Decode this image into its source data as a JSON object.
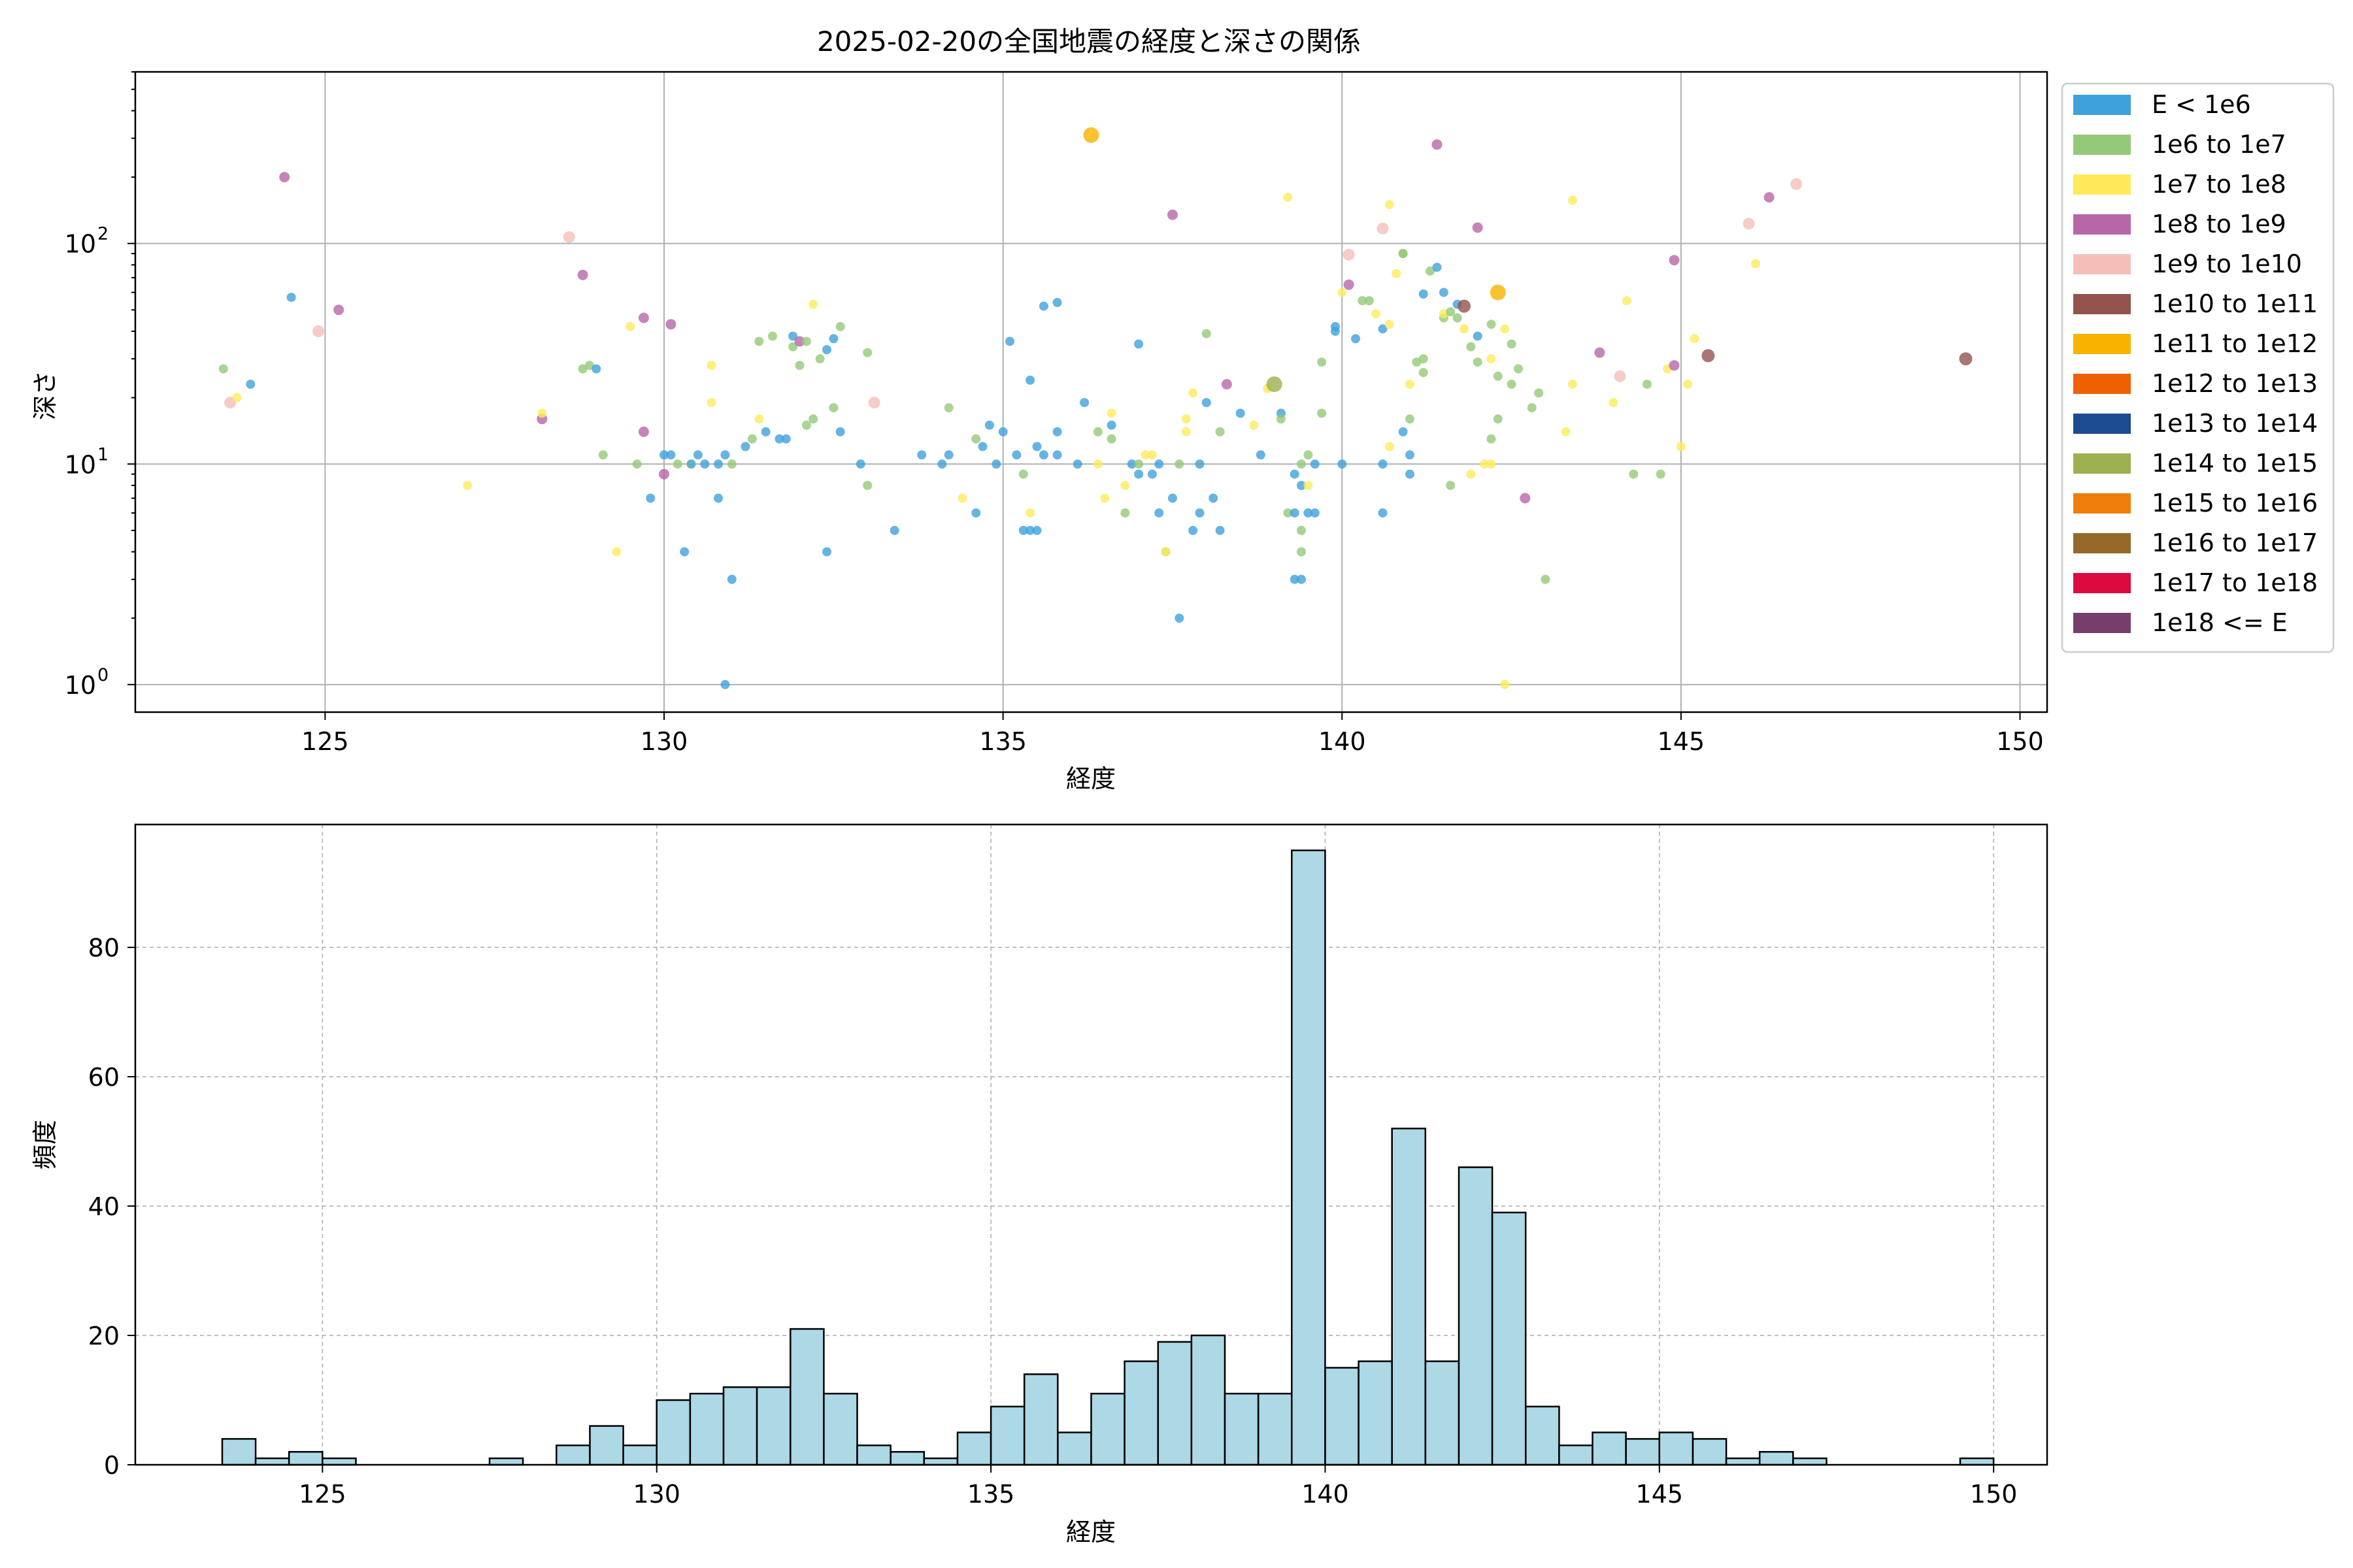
{
  "chart_data": [
    {
      "type": "scatter",
      "title": "2025-02-20の全国地震の経度と深さの関係",
      "xlabel": "経度",
      "ylabel": "深さ",
      "xlim": [
        122.2,
        150.4
      ],
      "ylim": [
        600,
        0.75
      ],
      "y_scale": "log",
      "y_inverted": true,
      "grid": true,
      "xticks": [
        125,
        130,
        135,
        140,
        145,
        150
      ],
      "xtick_labels": [
        "125",
        "130",
        "135",
        "140",
        "145",
        "150"
      ],
      "ytick_labels": [
        {
          "value": 1,
          "base": "10",
          "exp": "0"
        },
        {
          "value": 10,
          "base": "10",
          "exp": "1"
        },
        {
          "value": 100,
          "base": "10",
          "exp": "2"
        }
      ],
      "legend_position": "outside-right",
      "legend": [
        {
          "label": "E < 1e6",
          "color": "#3ea1dc"
        },
        {
          "label": "1e6 to 1e7",
          "color": "#93c977"
        },
        {
          "label": "1e7 to 1e8",
          "color": "#ffeb5c"
        },
        {
          "label": "1e8 to 1e9",
          "color": "#b866a8"
        },
        {
          "label": "1e9 to 1e10",
          "color": "#f5bfb8"
        },
        {
          "label": "1e10 to 1e11",
          "color": "#94534d"
        },
        {
          "label": "1e11 to 1e12",
          "color": "#f8b300"
        },
        {
          "label": "1e12 to 1e13",
          "color": "#ed6103"
        },
        {
          "label": "1e13 to 1e14",
          "color": "#1d4b8f"
        },
        {
          "label": "1e14 to 1e15",
          "color": "#9cb04f"
        },
        {
          "label": "1e15 to 1e16",
          "color": "#ef7e0b"
        },
        {
          "label": "1e16 to 1e17",
          "color": "#96692a"
        },
        {
          "label": "1e17 to 1e18",
          "color": "#dc0a3f"
        },
        {
          "label": "1e18 <= E",
          "color": "#773e6c"
        }
      ],
      "points": [
        [
          123.5,
          27,
          1
        ],
        [
          123.6,
          19,
          4
        ],
        [
          123.7,
          20,
          2
        ],
        [
          123.9,
          23,
          0
        ],
        [
          124.4,
          200,
          3
        ],
        [
          124.5,
          57,
          0
        ],
        [
          124.9,
          40,
          4
        ],
        [
          125.2,
          50,
          3
        ],
        [
          127.1,
          8,
          2
        ],
        [
          128.2,
          16,
          3
        ],
        [
          128.2,
          17,
          2
        ],
        [
          128.6,
          107,
          4
        ],
        [
          128.8,
          72,
          3
        ],
        [
          128.8,
          27,
          1
        ],
        [
          128.9,
          28,
          1
        ],
        [
          129.0,
          27,
          0
        ],
        [
          129.1,
          11,
          1
        ],
        [
          129.3,
          4,
          2
        ],
        [
          129.5,
          42,
          2
        ],
        [
          129.6,
          10,
          1
        ],
        [
          129.7,
          46,
          3
        ],
        [
          129.7,
          14,
          3
        ],
        [
          129.8,
          7,
          0
        ],
        [
          130.0,
          9,
          3
        ],
        [
          130.0,
          11,
          0
        ],
        [
          130.1,
          11,
          0
        ],
        [
          130.1,
          43,
          3
        ],
        [
          130.2,
          10,
          1
        ],
        [
          130.3,
          4,
          0
        ],
        [
          130.4,
          10,
          2
        ],
        [
          130.4,
          10,
          0
        ],
        [
          130.5,
          11,
          0
        ],
        [
          130.6,
          10,
          0
        ],
        [
          130.7,
          19,
          2
        ],
        [
          130.7,
          28,
          2
        ],
        [
          130.8,
          10,
          0
        ],
        [
          130.8,
          7,
          0
        ],
        [
          130.9,
          11,
          0
        ],
        [
          130.9,
          1.0,
          0
        ],
        [
          131.0,
          10,
          1
        ],
        [
          131.0,
          3,
          0
        ],
        [
          131.2,
          12,
          0
        ],
        [
          131.3,
          13,
          1
        ],
        [
          131.4,
          36,
          1
        ],
        [
          131.4,
          16,
          2
        ],
        [
          131.5,
          14,
          0
        ],
        [
          131.6,
          38,
          1
        ],
        [
          131.7,
          13,
          0
        ],
        [
          131.8,
          13,
          0
        ],
        [
          131.9,
          38,
          0
        ],
        [
          131.9,
          34,
          1
        ],
        [
          132.0,
          28,
          1
        ],
        [
          132.0,
          36,
          3
        ],
        [
          132.1,
          36,
          1
        ],
        [
          132.1,
          15,
          1
        ],
        [
          132.2,
          53,
          2
        ],
        [
          132.2,
          16,
          1
        ],
        [
          132.3,
          30,
          1
        ],
        [
          132.4,
          33,
          0
        ],
        [
          132.4,
          4,
          0
        ],
        [
          132.5,
          37,
          0
        ],
        [
          132.5,
          18,
          1
        ],
        [
          132.6,
          42,
          1
        ],
        [
          132.6,
          14,
          0
        ],
        [
          132.9,
          10,
          0
        ],
        [
          133.0,
          32,
          1
        ],
        [
          133.0,
          8,
          1
        ],
        [
          133.1,
          19,
          4
        ],
        [
          133.4,
          5,
          0
        ],
        [
          133.8,
          11,
          0
        ],
        [
          134.1,
          10,
          0
        ],
        [
          134.2,
          18,
          1
        ],
        [
          134.2,
          11,
          0
        ],
        [
          134.4,
          7,
          2
        ],
        [
          134.6,
          6,
          0
        ],
        [
          134.6,
          13,
          1
        ],
        [
          134.7,
          12,
          0
        ],
        [
          134.8,
          15,
          0
        ],
        [
          134.9,
          10,
          0
        ],
        [
          135.0,
          14,
          0
        ],
        [
          135.1,
          36,
          0
        ],
        [
          135.2,
          11,
          0
        ],
        [
          135.3,
          9,
          1
        ],
        [
          135.3,
          5,
          0
        ],
        [
          135.4,
          6,
          2
        ],
        [
          135.4,
          5,
          0
        ],
        [
          135.4,
          24,
          0
        ],
        [
          135.5,
          12,
          0
        ],
        [
          135.5,
          5,
          0
        ],
        [
          135.6,
          11,
          0
        ],
        [
          135.6,
          52,
          0
        ],
        [
          135.8,
          54,
          0
        ],
        [
          135.8,
          14,
          0
        ],
        [
          135.8,
          11,
          0
        ],
        [
          136.1,
          10,
          0
        ],
        [
          136.2,
          19,
          0
        ],
        [
          136.3,
          310,
          6
        ],
        [
          136.4,
          14,
          1
        ],
        [
          136.4,
          10,
          2
        ],
        [
          136.5,
          7,
          2
        ],
        [
          136.6,
          15,
          0
        ],
        [
          136.6,
          13,
          1
        ],
        [
          136.6,
          17,
          2
        ],
        [
          136.8,
          6,
          1
        ],
        [
          136.8,
          8,
          2
        ],
        [
          136.9,
          10,
          0
        ],
        [
          137.0,
          35,
          0
        ],
        [
          137.0,
          9,
          0
        ],
        [
          137.0,
          10,
          1
        ],
        [
          137.1,
          11,
          2
        ],
        [
          137.2,
          9,
          0
        ],
        [
          137.2,
          11,
          2
        ],
        [
          137.3,
          10,
          0
        ],
        [
          137.3,
          6,
          0
        ],
        [
          137.4,
          4,
          1
        ],
        [
          137.4,
          4,
          2
        ],
        [
          137.5,
          135,
          3
        ],
        [
          137.5,
          7,
          0
        ],
        [
          137.6,
          2,
          0
        ],
        [
          137.6,
          10,
          1
        ],
        [
          137.7,
          14,
          2
        ],
        [
          137.7,
          16,
          2
        ],
        [
          137.8,
          5,
          0
        ],
        [
          137.8,
          21,
          2
        ],
        [
          137.9,
          10,
          0
        ],
        [
          137.9,
          6,
          0
        ],
        [
          138.0,
          39,
          1
        ],
        [
          138.0,
          19,
          0
        ],
        [
          138.1,
          7,
          0
        ],
        [
          138.2,
          14,
          1
        ],
        [
          138.2,
          5,
          0
        ],
        [
          138.3,
          23,
          3
        ],
        [
          138.5,
          17,
          0
        ],
        [
          138.7,
          15,
          2
        ],
        [
          138.8,
          11,
          0
        ],
        [
          138.9,
          22,
          2
        ],
        [
          139.0,
          23,
          9
        ],
        [
          139.1,
          17,
          0
        ],
        [
          139.1,
          16,
          1
        ],
        [
          139.2,
          6,
          1
        ],
        [
          139.2,
          162,
          2
        ],
        [
          139.3,
          6,
          0
        ],
        [
          139.3,
          9,
          0
        ],
        [
          139.3,
          3,
          0
        ],
        [
          139.4,
          3,
          0
        ],
        [
          139.4,
          5,
          1
        ],
        [
          139.4,
          4,
          1
        ],
        [
          139.4,
          8,
          0
        ],
        [
          139.4,
          10,
          1
        ],
        [
          139.5,
          8,
          2
        ],
        [
          139.5,
          6,
          0
        ],
        [
          139.5,
          11,
          1
        ],
        [
          139.6,
          6,
          0
        ],
        [
          139.6,
          10,
          0
        ],
        [
          139.7,
          17,
          1
        ],
        [
          139.7,
          29,
          1
        ],
        [
          139.9,
          40,
          0
        ],
        [
          139.9,
          42,
          0
        ],
        [
          140.0,
          10,
          0
        ],
        [
          140.0,
          60,
          2
        ],
        [
          140.1,
          89,
          4
        ],
        [
          140.1,
          65,
          3
        ],
        [
          140.2,
          37,
          0
        ],
        [
          140.3,
          55,
          1
        ],
        [
          140.4,
          55,
          1
        ],
        [
          140.5,
          48,
          2
        ],
        [
          140.6,
          41,
          0
        ],
        [
          140.6,
          6,
          0
        ],
        [
          140.6,
          117,
          4
        ],
        [
          140.6,
          10,
          0
        ],
        [
          140.7,
          43,
          2
        ],
        [
          140.7,
          150,
          2
        ],
        [
          140.7,
          12,
          2
        ],
        [
          140.8,
          73,
          2
        ],
        [
          140.9,
          90,
          1
        ],
        [
          140.9,
          90,
          1
        ],
        [
          140.9,
          14,
          0
        ],
        [
          141.0,
          11,
          0
        ],
        [
          141.0,
          23,
          2
        ],
        [
          141.0,
          16,
          1
        ],
        [
          141.0,
          9,
          0
        ],
        [
          141.1,
          29,
          1
        ],
        [
          141.2,
          26,
          1
        ],
        [
          141.2,
          30,
          1
        ],
        [
          141.2,
          59,
          0
        ],
        [
          141.3,
          75,
          1
        ],
        [
          141.4,
          78,
          0
        ],
        [
          141.4,
          281,
          3
        ],
        [
          141.5,
          46,
          1
        ],
        [
          141.5,
          48,
          2
        ],
        [
          141.5,
          60,
          0
        ],
        [
          141.6,
          8,
          1
        ],
        [
          141.6,
          49,
          1
        ],
        [
          141.7,
          46,
          1
        ],
        [
          141.7,
          53,
          0
        ],
        [
          141.8,
          52,
          5
        ],
        [
          141.8,
          41,
          2
        ],
        [
          141.9,
          9,
          2
        ],
        [
          141.9,
          34,
          1
        ],
        [
          142.0,
          29,
          1
        ],
        [
          142.0,
          118,
          3
        ],
        [
          142.0,
          38,
          0
        ],
        [
          142.1,
          10,
          2
        ],
        [
          142.2,
          10,
          2
        ],
        [
          142.2,
          30,
          2
        ],
        [
          142.2,
          43,
          1
        ],
        [
          142.2,
          13,
          1
        ],
        [
          142.3,
          25,
          1
        ],
        [
          142.3,
          16,
          1
        ],
        [
          142.3,
          60,
          6
        ],
        [
          142.4,
          1.0,
          2
        ],
        [
          142.4,
          41,
          2
        ],
        [
          142.5,
          35,
          1
        ],
        [
          142.5,
          23,
          1
        ],
        [
          142.6,
          27,
          1
        ],
        [
          142.7,
          7,
          3
        ],
        [
          142.8,
          18,
          1
        ],
        [
          142.9,
          21,
          1
        ],
        [
          143.0,
          3,
          1
        ],
        [
          143.3,
          14,
          2
        ],
        [
          143.4,
          23,
          2
        ],
        [
          143.4,
          157,
          2
        ],
        [
          143.8,
          32,
          3
        ],
        [
          144.0,
          19,
          2
        ],
        [
          144.1,
          25,
          4
        ],
        [
          144.2,
          55,
          2
        ],
        [
          144.3,
          9,
          1
        ],
        [
          144.5,
          23,
          1
        ],
        [
          144.7,
          9,
          1
        ],
        [
          144.8,
          27,
          2
        ],
        [
          144.9,
          28,
          3
        ],
        [
          144.9,
          84,
          3
        ],
        [
          145.0,
          12,
          2
        ],
        [
          145.1,
          23,
          2
        ],
        [
          145.2,
          37,
          2
        ],
        [
          145.4,
          31,
          5
        ],
        [
          146.0,
          123,
          4
        ],
        [
          146.1,
          81,
          2
        ],
        [
          146.3,
          162,
          3
        ],
        [
          146.7,
          186,
          4
        ],
        [
          149.2,
          30,
          5
        ]
      ]
    },
    {
      "type": "bar",
      "title": "",
      "xlabel": "経度",
      "ylabel": "頻度",
      "xlim": [
        122.2,
        150.8
      ],
      "ylim": [
        0,
        99
      ],
      "grid": true,
      "xticks": [
        125,
        130,
        135,
        140,
        145,
        150
      ],
      "xtick_labels": [
        "125",
        "130",
        "135",
        "140",
        "145",
        "150"
      ],
      "yticks": [
        0,
        20,
        40,
        60,
        80
      ],
      "ytick_labels": [
        "0",
        "20",
        "40",
        "60",
        "80"
      ],
      "bar_color": "#add8e6",
      "bin_start": 123.5,
      "bin_width": 0.5,
      "values": [
        4,
        1,
        2,
        1,
        0,
        0,
        0,
        0,
        1,
        0,
        3,
        6,
        3,
        10,
        11,
        12,
        12,
        21,
        11,
        3,
        2,
        1,
        5,
        9,
        14,
        5,
        11,
        16,
        19,
        20,
        11,
        11,
        95,
        15,
        16,
        52,
        16,
        46,
        39,
        9,
        3,
        5,
        4,
        5,
        4,
        1,
        2,
        1,
        0,
        0,
        0,
        0,
        1
      ]
    }
  ]
}
